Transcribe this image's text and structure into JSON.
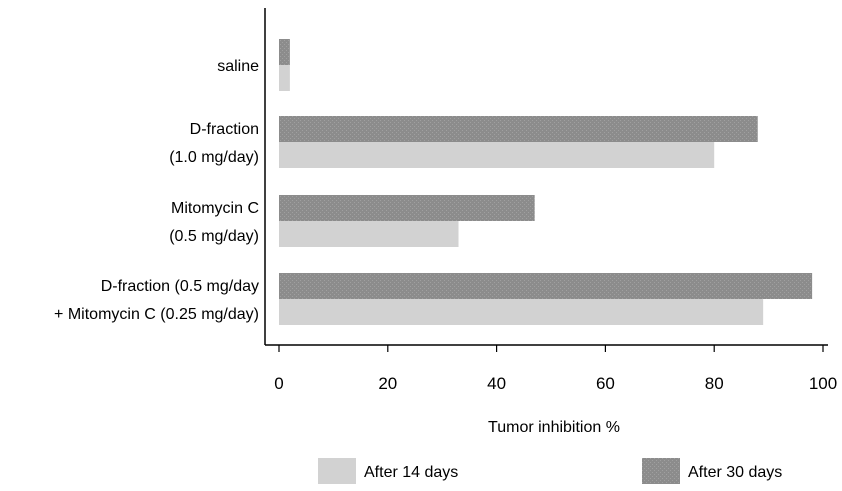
{
  "chart_data": {
    "type": "bar",
    "orientation": "horizontal",
    "categories": [
      [
        "saline"
      ],
      [
        "D-fraction",
        "(1.0 mg/day)"
      ],
      [
        "Mitomycin C",
        "(0.5 mg/day)"
      ],
      [
        "D-fraction (0.5 mg/day",
        "+ Mitomycin C (0.25 mg/day)"
      ]
    ],
    "series": [
      {
        "name": "After 30 days",
        "values": [
          2,
          88,
          47,
          98
        ],
        "color": "#8c8c8c"
      },
      {
        "name": "After 14 days",
        "values": [
          2,
          80,
          33,
          89
        ],
        "color": "#d2d2d2"
      }
    ],
    "xlabel": "Tumor inhibition %",
    "xlim": [
      0,
      100
    ],
    "xticks": [
      0,
      20,
      40,
      60,
      80,
      100
    ],
    "legend": {
      "placement": "bottom",
      "order": [
        "After 14 days",
        "After 30 days"
      ]
    },
    "grid": false
  }
}
